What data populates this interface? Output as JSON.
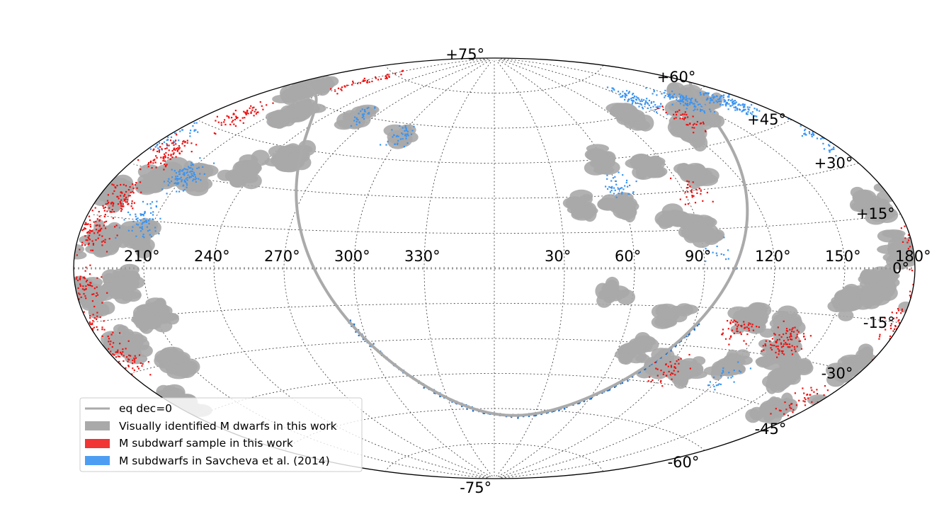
{
  "chart_data": {
    "type": "scatter",
    "projection": "Aitoff (equatorial, RA increasing to the left)",
    "title": "",
    "xlabel": "",
    "ylabel": "",
    "grid": true,
    "legend_placement": "lower-left",
    "xlim": [
      360,
      0
    ],
    "ylim": [
      -90,
      90
    ],
    "ra_tick_labels": [
      "330°",
      "300°",
      "270°",
      "240°",
      "210°",
      "180°",
      "150°",
      "120°",
      "90°",
      "60°",
      "30°"
    ],
    "ra_tick_values": [
      330,
      300,
      270,
      240,
      210,
      180,
      150,
      120,
      90,
      60,
      30
    ],
    "dec_tick_labels": [
      "+75°",
      "+60°",
      "+45°",
      "+30°",
      "+15°",
      "0°",
      "-15°",
      "-30°",
      "-45°",
      "-60°",
      "-75°"
    ],
    "dec_tick_values": [
      75,
      60,
      45,
      30,
      15,
      0,
      -15,
      -30,
      -45,
      -60,
      -75
    ],
    "series": [
      {
        "name": "eq dec=0",
        "kind": "line",
        "color": "#aaaaaa",
        "description_values": {
          "dec": 0
        }
      },
      {
        "name": "Visually identified M dwarfs in this work",
        "kind": "patches",
        "color": "#a9a9a9",
        "clusters": [
          {
            "ra": 195,
            "dec": 62,
            "n": 40
          },
          {
            "ra": 220,
            "dec": 55,
            "n": 30
          },
          {
            "ra": 250,
            "dec": 42,
            "n": 30
          },
          {
            "ra": 235,
            "dec": 35,
            "n": 25
          },
          {
            "ra": 215,
            "dec": 30,
            "n": 30
          },
          {
            "ra": 200,
            "dec": 28,
            "n": 30
          },
          {
            "ra": 185,
            "dec": 22,
            "n": 35
          },
          {
            "ra": 170,
            "dec": 18,
            "n": 25
          },
          {
            "ra": 205,
            "dec": 10,
            "n": 30
          },
          {
            "ra": 190,
            "dec": 8,
            "n": 35
          },
          {
            "ra": 175,
            "dec": 5,
            "n": 30
          },
          {
            "ra": 200,
            "dec": -5,
            "n": 35
          },
          {
            "ra": 185,
            "dec": -8,
            "n": 35
          },
          {
            "ra": 165,
            "dec": -5,
            "n": 35
          },
          {
            "ra": 155,
            "dec": -10,
            "n": 25
          },
          {
            "ra": 210,
            "dec": -15,
            "n": 30
          },
          {
            "ra": 190,
            "dec": -22,
            "n": 30
          },
          {
            "ra": 175,
            "dec": -28,
            "n": 25
          },
          {
            "ra": 205,
            "dec": -30,
            "n": 25
          },
          {
            "ra": 185,
            "dec": -40,
            "n": 25
          },
          {
            "ra": 165,
            "dec": -45,
            "n": 20
          },
          {
            "ra": 150,
            "dec": -35,
            "n": 25
          },
          {
            "ra": 135,
            "dec": -28,
            "n": 25
          },
          {
            "ra": 120,
            "dec": -35,
            "n": 25
          },
          {
            "ra": 130,
            "dec": -20,
            "n": 25
          },
          {
            "ra": 115,
            "dec": -18,
            "n": 25
          },
          {
            "ra": 100,
            "dec": -40,
            "n": 25
          },
          {
            "ra": 85,
            "dec": -38,
            "n": 25
          },
          {
            "ra": 70,
            "dec": -33,
            "n": 20
          },
          {
            "ra": 80,
            "dec": -18,
            "n": 15
          },
          {
            "ra": 90,
            "dec": 15,
            "n": 35
          },
          {
            "ra": 80,
            "dec": 20,
            "n": 20
          },
          {
            "ra": 60,
            "dec": 25,
            "n": 20
          },
          {
            "ra": 40,
            "dec": 25,
            "n": 20
          },
          {
            "ra": 100,
            "dec": 35,
            "n": 20
          },
          {
            "ra": 80,
            "dec": 40,
            "n": 20
          },
          {
            "ra": 60,
            "dec": 45,
            "n": 15
          },
          {
            "ra": 120,
            "dec": 50,
            "n": 25
          },
          {
            "ra": 140,
            "dec": 55,
            "n": 25
          },
          {
            "ra": 160,
            "dec": 60,
            "n": 25
          },
          {
            "ra": 100,
            "dec": 60,
            "n": 25
          },
          {
            "ra": 260,
            "dec": 60,
            "n": 15
          },
          {
            "ra": 300,
            "dec": 55,
            "n": 8
          },
          {
            "ra": 50,
            "dec": -10,
            "n": 12
          }
        ]
      },
      {
        "name": "M subdwarf sample in this work",
        "kind": "scatter",
        "color": "#ee1111",
        "clusters": [
          {
            "ra": 195,
            "dec": 50,
            "n": 60
          },
          {
            "ra": 190,
            "dec": 35,
            "n": 90
          },
          {
            "ra": 190,
            "dec": 20,
            "n": 90
          },
          {
            "ra": 185,
            "dec": 10,
            "n": 90
          },
          {
            "ra": 185,
            "dec": -5,
            "n": 60
          },
          {
            "ra": 180,
            "dec": -15,
            "n": 60
          },
          {
            "ra": 185,
            "dec": -25,
            "n": 60
          },
          {
            "ra": 135,
            "dec": -25,
            "n": 90
          },
          {
            "ra": 110,
            "dec": -22,
            "n": 50
          },
          {
            "ra": 90,
            "dec": -40,
            "n": 40
          },
          {
            "ra": 170,
            "dec": -40,
            "n": 40
          },
          {
            "ra": 130,
            "dec": 55,
            "n": 40
          },
          {
            "ra": 95,
            "dec": 30,
            "n": 30
          },
          {
            "ra": 210,
            "dec": 70,
            "n": 40
          }
        ]
      },
      {
        "name": "M subdwarfs in Savcheva et al. (2014)",
        "kind": "scatter",
        "color": "#3a94f2",
        "clusters": [
          {
            "ra": 170,
            "dec": 55,
            "n": 120
          },
          {
            "ra": 150,
            "dec": 60,
            "n": 100
          },
          {
            "ra": 125,
            "dec": 65,
            "n": 80
          },
          {
            "ra": 210,
            "dec": 30,
            "n": 100
          },
          {
            "ra": 205,
            "dec": 15,
            "n": 70
          },
          {
            "ra": 180,
            "dec": 40,
            "n": 70
          },
          {
            "ra": 60,
            "dec": 35,
            "n": 40
          },
          {
            "ra": 300,
            "dec": 55,
            "n": 40
          },
          {
            "ra": 260,
            "dec": 60,
            "n": 30
          },
          {
            "ra": 120,
            "dec": -40,
            "n": 25
          },
          {
            "ra": 95,
            "dec": 5,
            "n": 15
          }
        ]
      }
    ]
  },
  "legend": {
    "items": [
      {
        "label": "eq dec=0",
        "color": "#aaaaaa",
        "kind": "line"
      },
      {
        "label": "Visually identified M dwarfs in this work",
        "color": "#a9a9a9",
        "kind": "patch"
      },
      {
        "label": "M subdwarf sample in this work",
        "color": "#ee1111",
        "kind": "patch"
      },
      {
        "label": "M subdwarfs in Savcheva et al. (2014)",
        "color": "#3a94f2",
        "kind": "patch"
      }
    ]
  }
}
